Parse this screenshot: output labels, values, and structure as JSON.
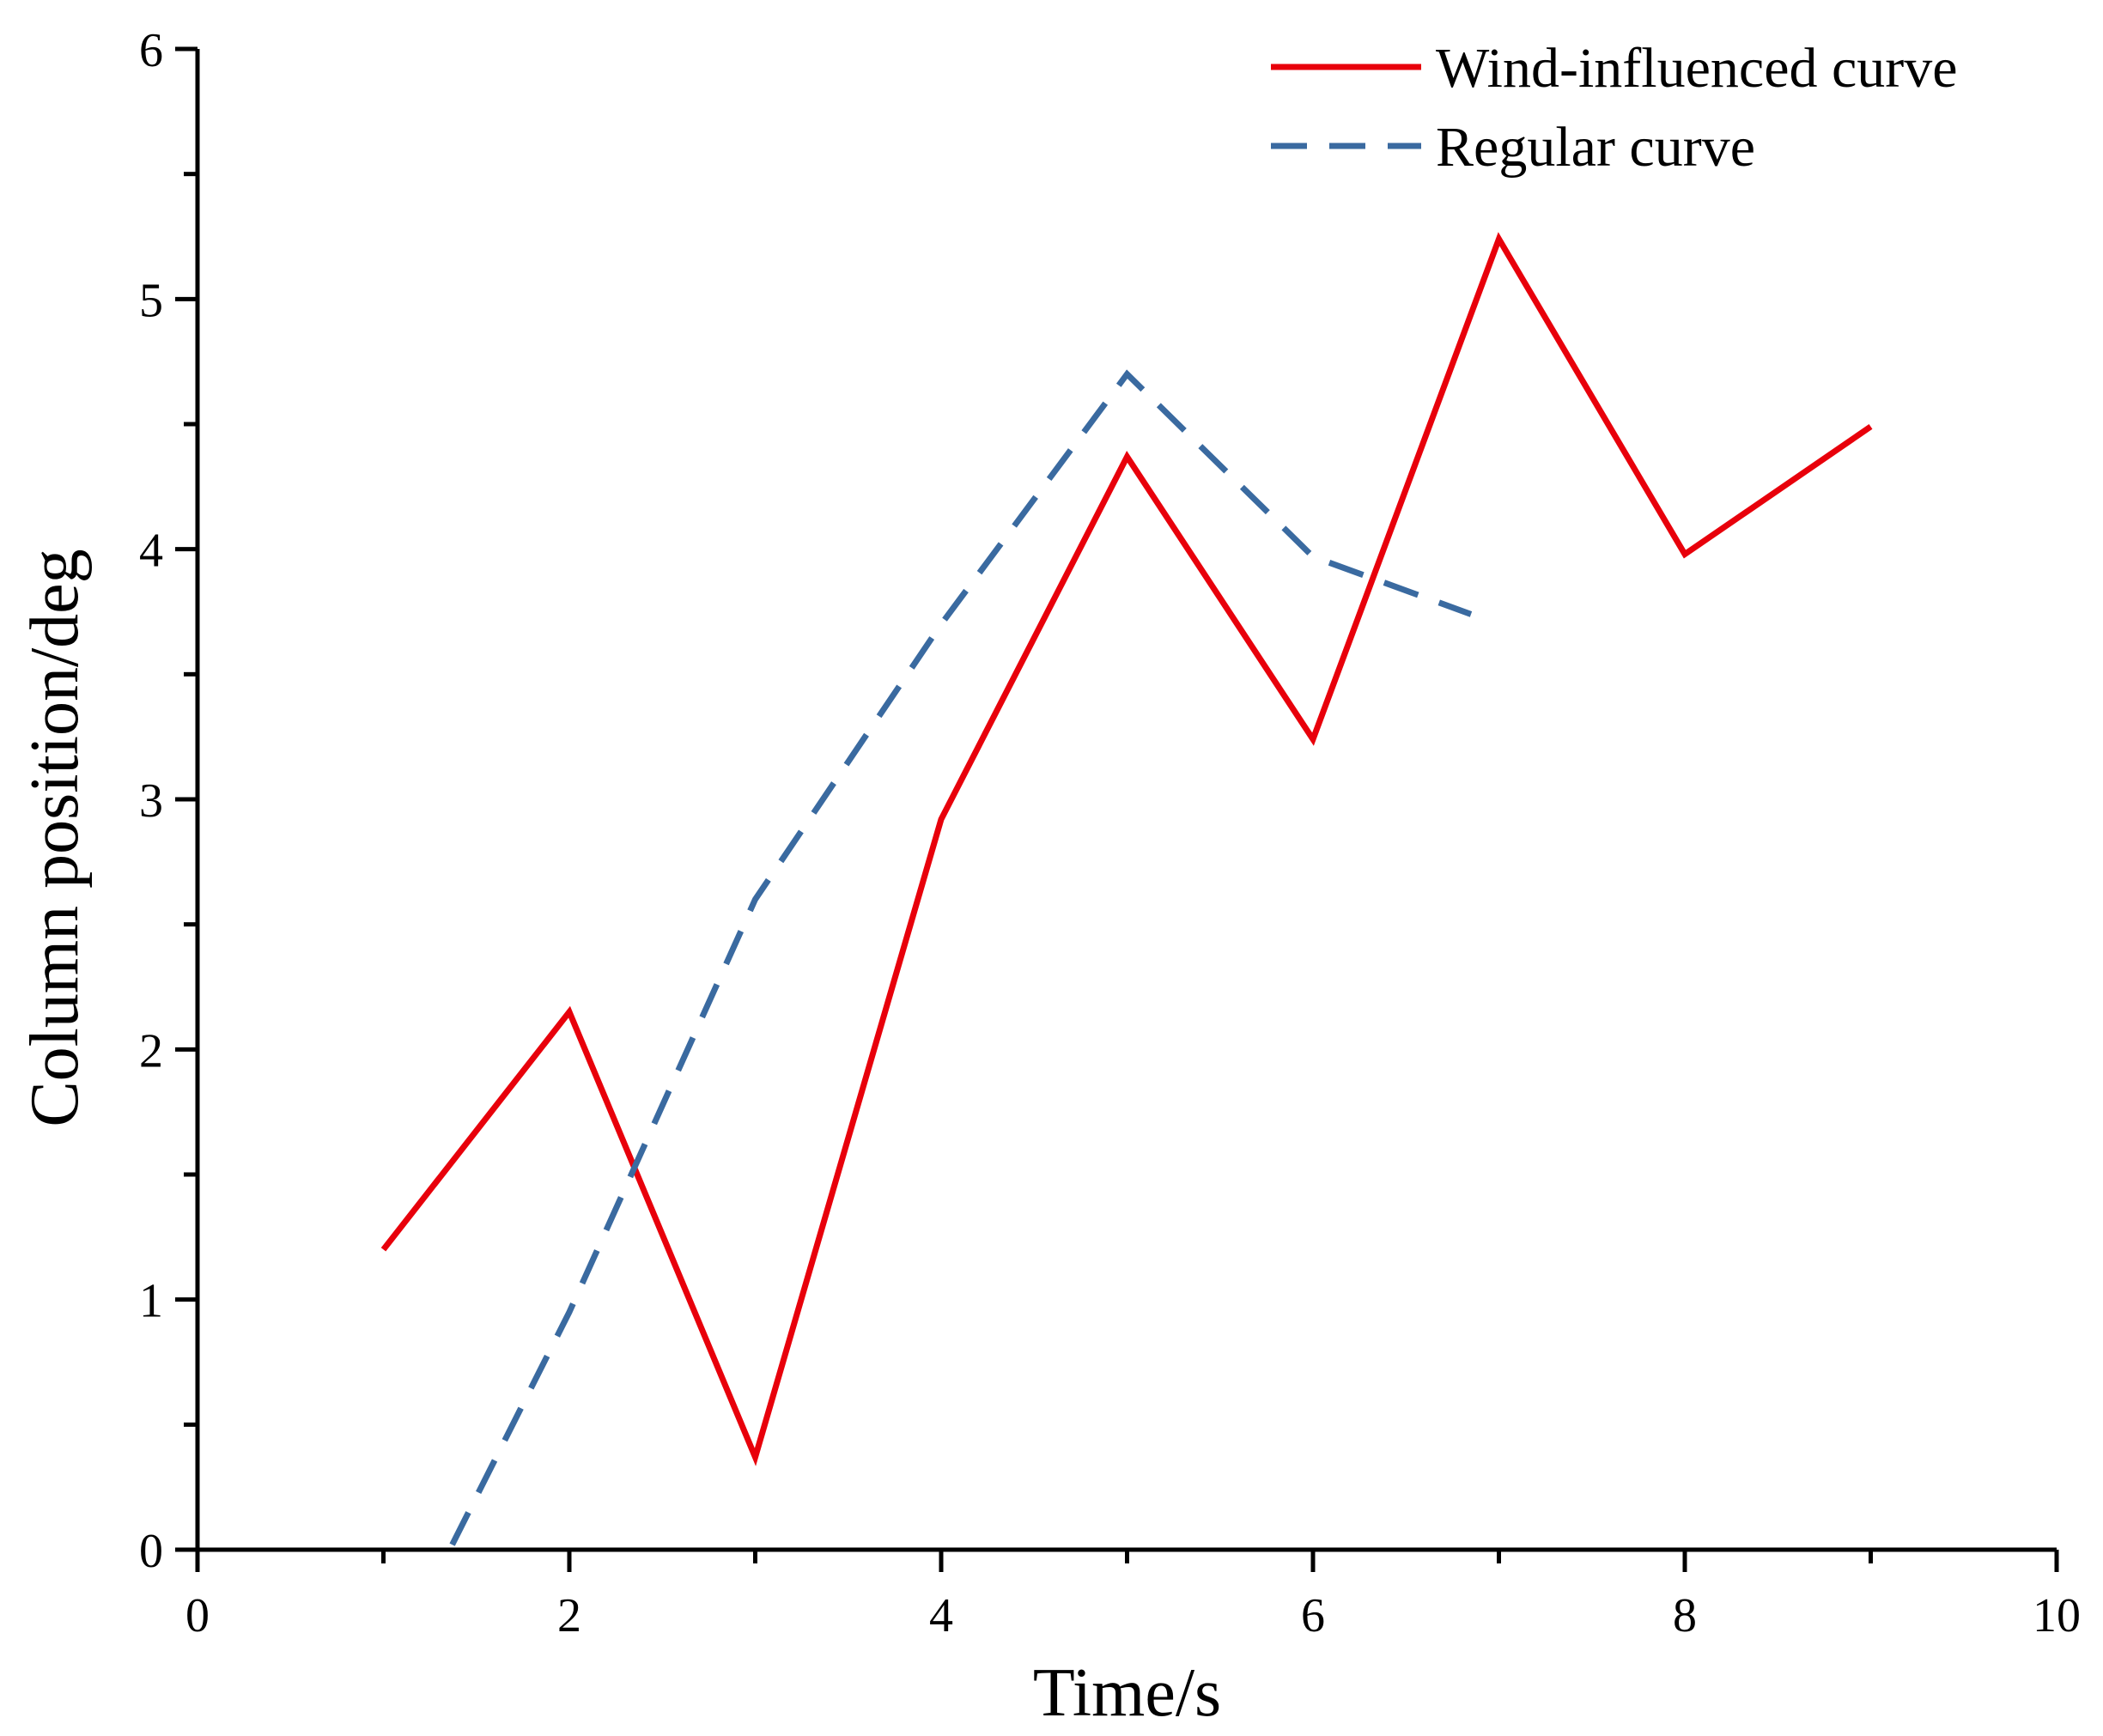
{
  "chart_data": {
    "type": "line",
    "title": "",
    "xlabel": "Time/s",
    "ylabel": "Column position/deg",
    "xlim": [
      0,
      10
    ],
    "ylim": [
      0,
      6
    ],
    "x_ticks": [
      0,
      2,
      4,
      6,
      8,
      10
    ],
    "y_ticks": [
      0,
      1,
      2,
      3,
      4,
      5,
      6
    ],
    "x_tick_labels": [
      "0",
      "2",
      "4",
      "6",
      "8",
      "10"
    ],
    "y_tick_labels": [
      "0",
      "1",
      "2",
      "3",
      "4",
      "5",
      "6"
    ],
    "legend_position": "top-right",
    "series": [
      {
        "name": "Wind-influenced curve",
        "style": "solid",
        "color": "#e8000b",
        "points": [
          [
            1,
            1.2
          ],
          [
            2,
            2.15
          ],
          [
            3,
            0.37
          ],
          [
            4,
            2.92
          ],
          [
            5,
            4.37
          ],
          [
            6,
            3.24
          ],
          [
            7,
            5.24
          ],
          [
            8,
            3.98
          ],
          [
            9,
            4.49
          ]
        ]
      },
      {
        "name": "Regular curve",
        "style": "dashed",
        "color": "#3a6aa0",
        "points": [
          [
            1.37,
            0.02
          ],
          [
            2,
            0.95
          ],
          [
            3,
            2.6
          ],
          [
            4,
            3.7
          ],
          [
            5,
            4.7
          ],
          [
            6,
            3.97
          ],
          [
            6.85,
            3.74
          ]
        ]
      }
    ]
  }
}
